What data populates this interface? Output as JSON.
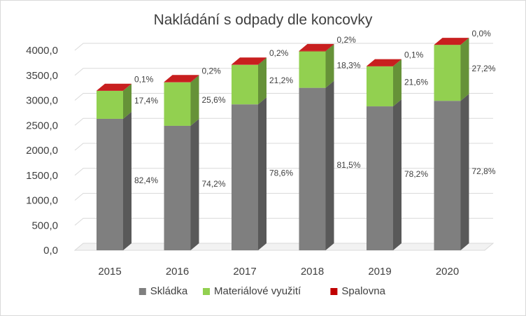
{
  "chart_data": {
    "type": "bar",
    "stacked": true,
    "three_d": true,
    "title": "Nakládání s odpady dle koncovky",
    "xlabel": "",
    "ylabel": "",
    "categories": [
      "2015",
      "2016",
      "2017",
      "2018",
      "2019",
      "2020"
    ],
    "ylim": [
      0,
      4000
    ],
    "yticks": [
      "0,0",
      "500,0",
      "1000,0",
      "1500,0",
      "2000,0",
      "2500,0",
      "3000,0",
      "3500,0",
      "4000,0"
    ],
    "grid": true,
    "legend": "bottom",
    "series": [
      {
        "name": "Skládka",
        "color": "#7f7f7f",
        "values": [
          2630,
          2490,
          2920,
          3250,
          2880,
          2990
        ],
        "labels": [
          "82,4%",
          "74,2%",
          "78,6%",
          "81,5%",
          "78,2%",
          "72,8%"
        ]
      },
      {
        "name": "Materiálové využití",
        "color": "#92d050",
        "values": [
          560,
          870,
          790,
          730,
          800,
          1120
        ],
        "labels": [
          "17,4%",
          "25,6%",
          "21,2%",
          "18,3%",
          "21,6%",
          "27,2%"
        ]
      },
      {
        "name": "Spalovna",
        "color": "#c00000",
        "values": [
          3,
          7,
          7,
          8,
          4,
          1
        ],
        "labels": [
          "0,1%",
          "0,2%",
          "0,2%",
          "0,2%",
          "0,1%",
          "0,0%"
        ]
      }
    ]
  }
}
